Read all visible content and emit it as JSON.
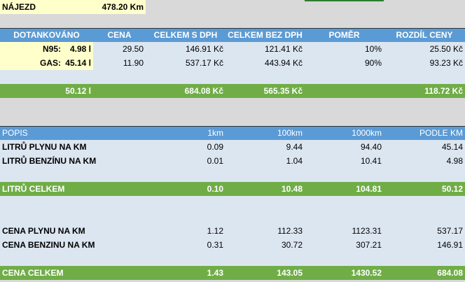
{
  "header": {
    "label": "NÁJEZD",
    "value": "478.20 Km"
  },
  "fuel_table": {
    "columns": [
      "DOTANKOVÁNO",
      "CENA",
      "CELKEM S DPH",
      "CELKEM BEZ DPH",
      "POMĚR",
      "ROZDÍL CENY"
    ],
    "rows": [
      [
        "N95:",
        "4.98 l",
        "29.50",
        "146.91 Kč",
        "121.41 Kč",
        "10%",
        "25.50 Kč"
      ],
      [
        "GAS:",
        "45.14 l",
        "11.90",
        "537.17 Kč",
        "443.94 Kč",
        "90%",
        "93.23 Kč"
      ]
    ],
    "total": {
      "fuel": "50.12 l",
      "with_vat": "684.08 Kč",
      "without_vat": "565.35 Kč",
      "difference": "118.72 Kč"
    }
  },
  "distance_table": {
    "columns": [
      "POPIS",
      "1km",
      "100km",
      "1000km",
      "PODLE KM"
    ],
    "rows": [
      [
        "LITRŮ PLYNU NA KM",
        "0.09",
        "9.44",
        "94.40",
        "45.14"
      ],
      [
        "LITRŮ BENZÍNU NA KM",
        "0.01",
        "1.04",
        "10.41",
        "4.98"
      ],
      [
        "LITRŮ CELKEM",
        "0.10",
        "10.48",
        "104.81",
        "50.12"
      ],
      [
        "CENA PLYNU NA KM",
        "1.12",
        "112.33",
        "1123.31",
        "537.17"
      ],
      [
        "CENA BENZINU NA KM",
        "0.31",
        "30.72",
        "307.21",
        "146.91"
      ],
      [
        "CENA CELKEM",
        "1.43",
        "143.05",
        "1430.52",
        "684.08"
      ]
    ]
  }
}
